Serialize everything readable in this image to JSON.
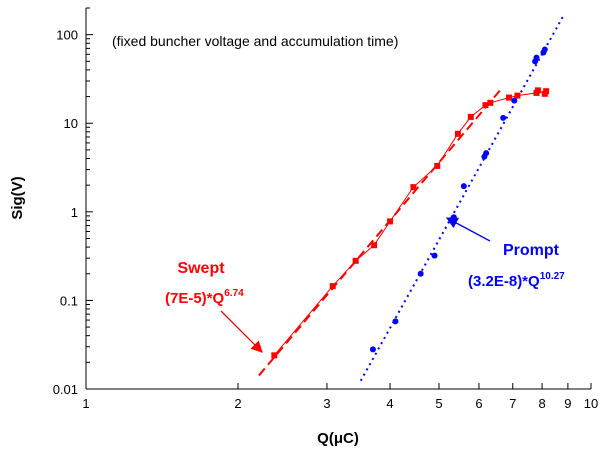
{
  "chart_data": {
    "type": "scatter",
    "title": "",
    "annotation": "(fixed buncher voltage and accumulation time)",
    "xlabel": "Q(μC)",
    "ylabel": "Sig(V)",
    "xscale": "log",
    "yscale": "log",
    "xlim": [
      1,
      10
    ],
    "ylim": [
      0.01,
      200
    ],
    "x_ticks": [
      1,
      2,
      3,
      4,
      5,
      6,
      7,
      8,
      9,
      10
    ],
    "x_tick_labels": [
      "1",
      "2",
      "3",
      "4",
      "5",
      "6",
      "7",
      "8",
      "9",
      "10"
    ],
    "y_ticks": [
      0.01,
      0.1,
      1,
      10,
      100
    ],
    "y_tick_labels": [
      "0.01",
      "0.1",
      "1",
      "10",
      "100"
    ],
    "grid": false,
    "series": [
      {
        "name": "Swept",
        "fit_label": "(7E-5)*Q",
        "fit_exponent": "6.74",
        "color": "#ff0000",
        "marker": "square",
        "x": [
          2.36,
          3.08,
          3.42,
          3.72,
          4.0,
          4.45,
          4.96,
          5.45,
          5.78,
          6.18,
          6.32,
          6.88,
          7.15,
          7.8,
          7.85,
          8.1,
          8.15
        ],
        "y": [
          0.024,
          0.145,
          0.28,
          0.42,
          0.78,
          1.9,
          3.3,
          7.6,
          11.8,
          16.0,
          17.0,
          19.5,
          20.5,
          22.0,
          23.5,
          21.5,
          23.0
        ],
        "fit_coefficient": 7e-05,
        "fit_power": 6.74,
        "fit_range": [
          2.2,
          6.65
        ]
      },
      {
        "name": "Prompt",
        "fit_label": "(3.2E-8)*Q",
        "fit_exponent": "10.27",
        "color": "#0000ff",
        "marker": "circle",
        "x": [
          3.7,
          4.1,
          4.6,
          4.9,
          5.35,
          5.6,
          6.15,
          6.2,
          6.7,
          7.05,
          7.75,
          7.8,
          8.05,
          8.1
        ],
        "y": [
          0.028,
          0.058,
          0.2,
          0.32,
          0.87,
          1.95,
          4.2,
          4.6,
          11.5,
          18.0,
          50.0,
          55.0,
          63.0,
          68.0
        ],
        "fit_coefficient": 3.2e-08,
        "fit_power": 10.27,
        "fit_range": [
          3.5,
          8.8
        ]
      }
    ],
    "callouts": [
      {
        "series": "Swept",
        "position": "left"
      },
      {
        "series": "Prompt",
        "position": "right"
      }
    ]
  }
}
